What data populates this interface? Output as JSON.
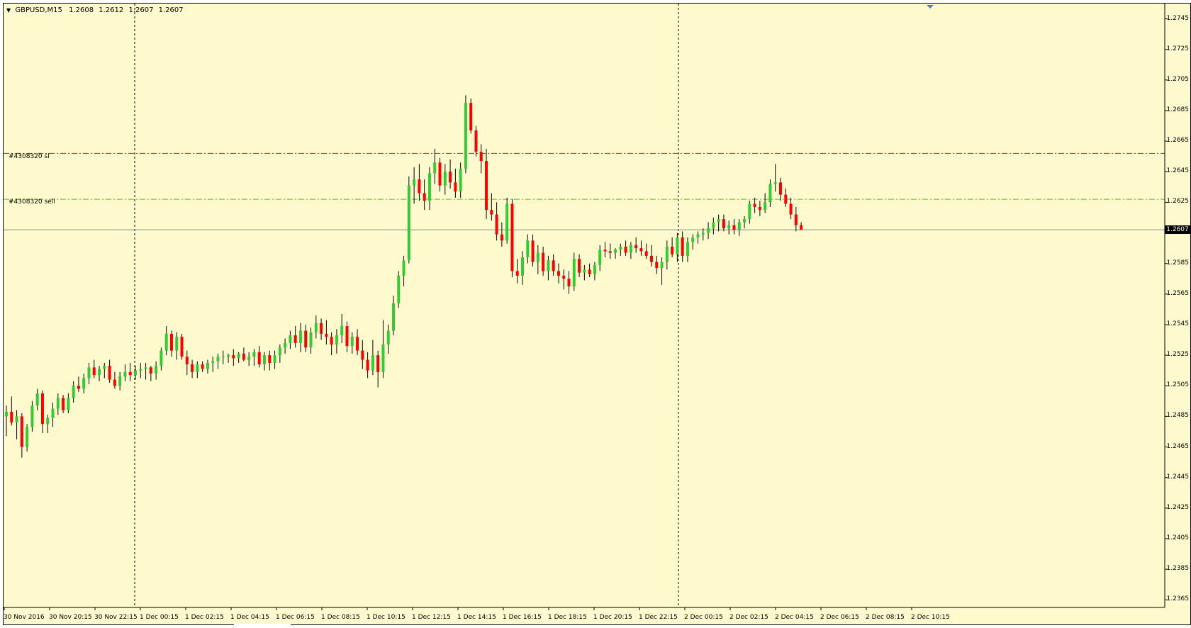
{
  "chart_info": {
    "symbol": "GBPUSD,M15",
    "open": "1.2608",
    "high": "1.2612",
    "low": "1.2607",
    "close": "1.2607"
  },
  "orders": {
    "sl_label": "#4308320 sl",
    "sell_label": "#4308320 sell",
    "sl_price": 1.2657,
    "sell_price": 1.2627
  },
  "bid": {
    "value": "1.2607",
    "price": 1.2607
  },
  "colors": {
    "background": "#fffacd",
    "bull": "#32cd32",
    "bear": "#ff0000",
    "sl_line": "#c81e1e",
    "sell_line": "#32cd32",
    "bid_line": "#7a8a9a"
  },
  "price_axis": {
    "labels": [
      "1.2745",
      "1.2725",
      "1.2705",
      "1.2685",
      "1.2665",
      "1.2645",
      "1.2625",
      "1.2605",
      "1.2585",
      "1.2565",
      "1.2545",
      "1.2525",
      "1.2505",
      "1.2485",
      "1.2465",
      "1.2445",
      "1.2425",
      "1.2405",
      "1.2385",
      "1.2365"
    ]
  },
  "time_axis": {
    "labels": [
      "30 Nov 2016",
      "30 Nov 20:15",
      "30 Nov 22:15",
      "1 Dec 00:15",
      "1 Dec 02:15",
      "1 Dec 04:15",
      "1 Dec 06:15",
      "1 Dec 08:15",
      "1 Dec 10:15",
      "1 Dec 12:15",
      "1 Dec 14:15",
      "1 Dec 16:15",
      "1 Dec 18:15",
      "1 Dec 20:15",
      "1 Dec 22:15",
      "2 Dec 00:15",
      "2 Dec 02:15",
      "2 Dec 04:15",
      "2 Dec 06:15",
      "2 Dec 08:15",
      "2 Dec 10:15"
    ]
  },
  "chart_data": {
    "type": "candlestick",
    "timeframe": "M15",
    "ylim": [
      1.236,
      1.2755
    ],
    "period_separators": [
      "1 Dec 00:00",
      "2 Dec 00:00"
    ],
    "grid": false,
    "candles": [
      [
        1.2485,
        1.2492,
        1.2472,
        1.2488
      ],
      [
        1.2488,
        1.2498,
        1.2479,
        1.2481
      ],
      [
        1.2481,
        1.2489,
        1.247,
        1.2485
      ],
      [
        1.2485,
        1.2487,
        1.2458,
        1.2465
      ],
      [
        1.2465,
        1.248,
        1.2462,
        1.2478
      ],
      [
        1.2478,
        1.2495,
        1.2475,
        1.2492
      ],
      [
        1.2492,
        1.2503,
        1.2489,
        1.25
      ],
      [
        1.25,
        1.2502,
        1.2474,
        1.248
      ],
      [
        1.248,
        1.2486,
        1.2474,
        1.2484
      ],
      [
        1.2484,
        1.2494,
        1.2478,
        1.249
      ],
      [
        1.249,
        1.25,
        1.2486,
        1.2497
      ],
      [
        1.2497,
        1.2499,
        1.2487,
        1.2489
      ],
      [
        1.2489,
        1.25,
        1.2487,
        1.2497
      ],
      [
        1.2497,
        1.2508,
        1.2494,
        1.2505
      ],
      [
        1.2505,
        1.2511,
        1.2501,
        1.2503
      ],
      [
        1.2503,
        1.2513,
        1.25,
        1.251
      ],
      [
        1.251,
        1.252,
        1.2506,
        1.2517
      ],
      [
        1.2517,
        1.2522,
        1.251,
        1.2512
      ],
      [
        1.2512,
        1.2518,
        1.2508,
        1.2516
      ],
      [
        1.2516,
        1.252,
        1.251,
        1.2518
      ],
      [
        1.2518,
        1.2522,
        1.2507,
        1.2509
      ],
      [
        1.2509,
        1.2514,
        1.2503,
        1.2505
      ],
      [
        1.2505,
        1.2514,
        1.2502,
        1.2511
      ],
      [
        1.2511,
        1.2519,
        1.2508,
        1.2514
      ],
      [
        1.2514,
        1.252,
        1.2508,
        1.2512
      ],
      [
        1.2512,
        1.2518,
        1.2509,
        1.2515
      ],
      [
        1.2515,
        1.252,
        1.251,
        1.2516
      ],
      [
        1.2516,
        1.252,
        1.2509,
        1.2517
      ],
      [
        1.2517,
        1.2518,
        1.2508,
        1.2513
      ],
      [
        1.2513,
        1.2521,
        1.2509,
        1.2518
      ],
      [
        1.2518,
        1.253,
        1.2515,
        1.2528
      ],
      [
        1.2528,
        1.2544,
        1.2525,
        1.2539
      ],
      [
        1.2539,
        1.2541,
        1.2524,
        1.2528
      ],
      [
        1.2528,
        1.254,
        1.2522,
        1.2537
      ],
      [
        1.2537,
        1.2539,
        1.2522,
        1.2524
      ],
      [
        1.2524,
        1.2528,
        1.2512,
        1.2519
      ],
      [
        1.2519,
        1.2522,
        1.251,
        1.2514
      ],
      [
        1.2514,
        1.2521,
        1.251,
        1.2519
      ],
      [
        1.2519,
        1.2521,
        1.2514,
        1.2516
      ],
      [
        1.2516,
        1.2522,
        1.2513,
        1.252
      ],
      [
        1.252,
        1.2524,
        1.2514,
        1.2521
      ],
      [
        1.2521,
        1.2526,
        1.2516,
        1.2524
      ],
      [
        1.2524,
        1.2528,
        1.2519,
        1.2524
      ],
      [
        1.2524,
        1.2526,
        1.252,
        1.2525
      ],
      [
        1.2525,
        1.2529,
        1.2518,
        1.2523
      ],
      [
        1.2523,
        1.2527,
        1.252,
        1.2526
      ],
      [
        1.2526,
        1.253,
        1.2521,
        1.2522
      ],
      [
        1.2522,
        1.2527,
        1.2518,
        1.2524
      ],
      [
        1.2524,
        1.2529,
        1.2518,
        1.2527
      ],
      [
        1.2527,
        1.2531,
        1.2517,
        1.2519
      ],
      [
        1.2519,
        1.2527,
        1.2515,
        1.2525
      ],
      [
        1.2525,
        1.2528,
        1.2515,
        1.252
      ],
      [
        1.252,
        1.2528,
        1.2516,
        1.2525
      ],
      [
        1.2525,
        1.2532,
        1.252,
        1.253
      ],
      [
        1.253,
        1.2536,
        1.2526,
        1.2533
      ],
      [
        1.2533,
        1.2541,
        1.2529,
        1.2538
      ],
      [
        1.2538,
        1.2544,
        1.253,
        1.2533
      ],
      [
        1.2533,
        1.2546,
        1.2527,
        1.2541
      ],
      [
        1.2541,
        1.2545,
        1.2527,
        1.253
      ],
      [
        1.253,
        1.2543,
        1.2526,
        1.254
      ],
      [
        1.254,
        1.2551,
        1.2536,
        1.2546
      ],
      [
        1.2546,
        1.2549,
        1.2535,
        1.2539
      ],
      [
        1.2539,
        1.2548,
        1.2532,
        1.2537
      ],
      [
        1.2537,
        1.254,
        1.2525,
        1.2532
      ],
      [
        1.2532,
        1.2542,
        1.2526,
        1.2538
      ],
      [
        1.2538,
        1.2552,
        1.2533,
        1.2544
      ],
      [
        1.2544,
        1.2547,
        1.2527,
        1.2531
      ],
      [
        1.2531,
        1.254,
        1.2526,
        1.2537
      ],
      [
        1.2537,
        1.2542,
        1.2525,
        1.2528
      ],
      [
        1.2528,
        1.2535,
        1.2516,
        1.2522
      ],
      [
        1.2522,
        1.2527,
        1.251,
        1.2515
      ],
      [
        1.2515,
        1.2535,
        1.2512,
        1.2525
      ],
      [
        1.2525,
        1.2528,
        1.2504,
        1.2514
      ],
      [
        1.2514,
        1.2548,
        1.251,
        1.2532
      ],
      [
        1.2532,
        1.2545,
        1.2526,
        1.2541
      ],
      [
        1.2541,
        1.2564,
        1.2538,
        1.2559
      ],
      [
        1.2559,
        1.258,
        1.2556,
        1.2577
      ],
      [
        1.2577,
        1.259,
        1.257,
        1.2587
      ],
      [
        1.2587,
        1.2642,
        1.2585,
        1.2636
      ],
      [
        1.2636,
        1.2648,
        1.2624,
        1.264
      ],
      [
        1.264,
        1.265,
        1.2626,
        1.2631
      ],
      [
        1.2631,
        1.264,
        1.262,
        1.2626
      ],
      [
        1.2626,
        1.2648,
        1.262,
        1.2644
      ],
      [
        1.2644,
        1.266,
        1.2637,
        1.2651
      ],
      [
        1.2651,
        1.2654,
        1.2632,
        1.2636
      ],
      [
        1.2636,
        1.265,
        1.263,
        1.2645
      ],
      [
        1.2645,
        1.2653,
        1.2634,
        1.2638
      ],
      [
        1.2638,
        1.2647,
        1.2628,
        1.2632
      ],
      [
        1.2632,
        1.2651,
        1.2628,
        1.2647
      ],
      [
        1.2647,
        1.2695,
        1.2644,
        1.269
      ],
      [
        1.269,
        1.2693,
        1.267,
        1.2672
      ],
      [
        1.2672,
        1.2675,
        1.2655,
        1.2658
      ],
      [
        1.2658,
        1.2663,
        1.2644,
        1.2652
      ],
      [
        1.2652,
        1.266,
        1.2614,
        1.262
      ],
      [
        1.262,
        1.2631,
        1.2613,
        1.2617
      ],
      [
        1.2617,
        1.2625,
        1.26,
        1.2604
      ],
      [
        1.2604,
        1.2612,
        1.2596,
        1.26
      ],
      [
        1.26,
        1.2628,
        1.2598,
        1.2624
      ],
      [
        1.2624,
        1.2627,
        1.2576,
        1.258
      ],
      [
        1.258,
        1.2588,
        1.2572,
        1.2577
      ],
      [
        1.2577,
        1.2593,
        1.2571,
        1.2589
      ],
      [
        1.2589,
        1.2604,
        1.2585,
        1.26
      ],
      [
        1.26,
        1.2604,
        1.2583,
        1.2586
      ],
      [
        1.2586,
        1.2597,
        1.2578,
        1.2592
      ],
      [
        1.2592,
        1.2596,
        1.2577,
        1.258
      ],
      [
        1.258,
        1.259,
        1.2574,
        1.2587
      ],
      [
        1.2587,
        1.2591,
        1.2577,
        1.258
      ],
      [
        1.258,
        1.2585,
        1.2572,
        1.2577
      ],
      [
        1.2577,
        1.2581,
        1.2568,
        1.2575
      ],
      [
        1.2575,
        1.258,
        1.2565,
        1.257
      ],
      [
        1.257,
        1.2592,
        1.2567,
        1.2588
      ],
      [
        1.2588,
        1.2591,
        1.2576,
        1.2579
      ],
      [
        1.2579,
        1.2584,
        1.2574,
        1.2581
      ],
      [
        1.2581,
        1.2585,
        1.2576,
        1.2578
      ],
      [
        1.2578,
        1.2586,
        1.2574,
        1.2584
      ],
      [
        1.2584,
        1.2597,
        1.258,
        1.2594
      ],
      [
        1.2594,
        1.2599,
        1.2589,
        1.2593
      ],
      [
        1.2593,
        1.2598,
        1.2588,
        1.2592
      ],
      [
        1.2592,
        1.2595,
        1.2588,
        1.2594
      ],
      [
        1.2594,
        1.2598,
        1.259,
        1.2596
      ],
      [
        1.2596,
        1.26,
        1.259,
        1.2592
      ],
      [
        1.2592,
        1.2599,
        1.2588,
        1.2597
      ],
      [
        1.2597,
        1.2602,
        1.2592,
        1.2595
      ],
      [
        1.2595,
        1.26,
        1.259,
        1.2593
      ],
      [
        1.2593,
        1.2598,
        1.2588,
        1.259
      ],
      [
        1.259,
        1.2597,
        1.2583,
        1.2586
      ],
      [
        1.2586,
        1.259,
        1.2578,
        1.2582
      ],
      [
        1.2582,
        1.2589,
        1.2571,
        1.2586
      ],
      [
        1.2586,
        1.26,
        1.2581,
        1.2596
      ],
      [
        1.2596,
        1.2602,
        1.2589,
        1.2591
      ],
      [
        1.2591,
        1.2605,
        1.2586,
        1.2602
      ],
      [
        1.2602,
        1.2606,
        1.2586,
        1.259
      ],
      [
        1.259,
        1.2602,
        1.2586,
        1.2599
      ],
      [
        1.2599,
        1.2604,
        1.2594,
        1.2602
      ],
      [
        1.2602,
        1.2606,
        1.2598,
        1.2604
      ],
      [
        1.2604,
        1.2608,
        1.26,
        1.2605
      ],
      [
        1.2605,
        1.2612,
        1.2601,
        1.2608
      ],
      [
        1.2608,
        1.2615,
        1.2604,
        1.2612
      ],
      [
        1.2612,
        1.2617,
        1.2606,
        1.2614
      ],
      [
        1.2614,
        1.2617,
        1.2606,
        1.2608
      ],
      [
        1.2608,
        1.2613,
        1.2604,
        1.261
      ],
      [
        1.261,
        1.2614,
        1.2604,
        1.2607
      ],
      [
        1.2607,
        1.2614,
        1.2603,
        1.2612
      ],
      [
        1.2612,
        1.2616,
        1.2608,
        1.2614
      ],
      [
        1.2614,
        1.2626,
        1.2611,
        1.2624
      ],
      [
        1.2624,
        1.2628,
        1.2618,
        1.2622
      ],
      [
        1.2622,
        1.2626,
        1.2616,
        1.262
      ],
      [
        1.262,
        1.2631,
        1.2618,
        1.2625
      ],
      [
        1.2625,
        1.264,
        1.2622,
        1.2637
      ],
      [
        1.2637,
        1.265,
        1.2632,
        1.2638
      ],
      [
        1.2638,
        1.2641,
        1.2626,
        1.263
      ],
      [
        1.263,
        1.2634,
        1.2622,
        1.2624
      ],
      [
        1.2624,
        1.2628,
        1.2614,
        1.2617
      ],
      [
        1.2617,
        1.2622,
        1.2606,
        1.261
      ],
      [
        1.261,
        1.2612,
        1.2607,
        1.2607
      ]
    ]
  }
}
